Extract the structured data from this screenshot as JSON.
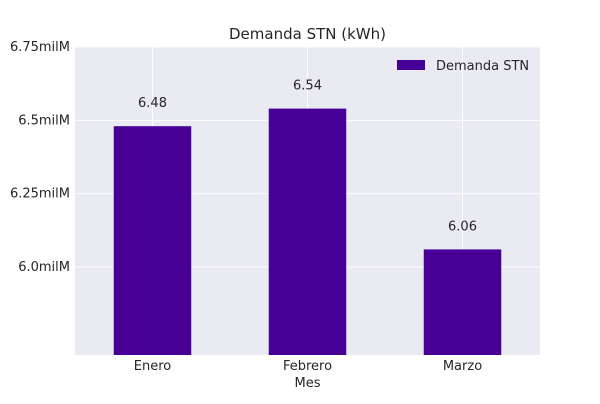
{
  "chart_data": {
    "type": "bar",
    "title": "Demanda STN (kWh)",
    "xlabel": "Mes",
    "ylabel": "",
    "categories": [
      "Enero",
      "Febrero",
      "Marzo"
    ],
    "series": [
      {
        "name": "Demanda STN",
        "values": [
          6.48,
          6.54,
          6.06
        ],
        "labels": [
          "6.48",
          "6.54",
          "6.06"
        ],
        "color": "#460096"
      }
    ],
    "ylim": [
      5.7,
      6.75
    ],
    "yticks": [
      {
        "value": 6.0,
        "label": "6.0milM"
      },
      {
        "value": 6.25,
        "label": "6.25milM"
      },
      {
        "value": 6.5,
        "label": "6.5milM"
      },
      {
        "value": 6.75,
        "label": "6.75milM"
      }
    ],
    "grid": true,
    "legend_position": "top-right",
    "background_color": "#eaeaf2",
    "grid_color": "#ffffff"
  }
}
